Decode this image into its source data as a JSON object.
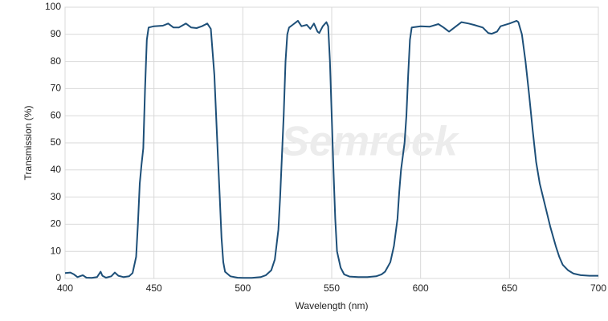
{
  "chart_data": {
    "type": "line",
    "watermark": "Semrock",
    "xlabel": "Wavelength (nm)",
    "ylabel": "Transmission (%)",
    "xlim": [
      400,
      700
    ],
    "ylim": [
      0,
      100
    ],
    "xticks": [
      400,
      450,
      500,
      550,
      600,
      650,
      700
    ],
    "yticks": [
      0,
      10,
      20,
      30,
      40,
      50,
      60,
      70,
      80,
      90,
      100
    ],
    "grid": true,
    "series": [
      {
        "color": "#1d4f78",
        "x": [
          400,
          403,
          405,
          407,
          410,
          412,
          415,
          418,
          420,
          421,
          423,
          426,
          428,
          430,
          433,
          436,
          438,
          440,
          441,
          442,
          443,
          444,
          445,
          446,
          447,
          450,
          455,
          458,
          461,
          464,
          468,
          471,
          474,
          477,
          480,
          482,
          484,
          486,
          487,
          488,
          489,
          490,
          493,
          497,
          500,
          505,
          510,
          513,
          516,
          518,
          520,
          521,
          522,
          523,
          524,
          525,
          526,
          528,
          531,
          533,
          536,
          538,
          540,
          542,
          543,
          545,
          547,
          548,
          549,
          550,
          551,
          552,
          553,
          555,
          557,
          560,
          565,
          570,
          575,
          578,
          580,
          583,
          585,
          587,
          588,
          589,
          590,
          591,
          592,
          593,
          594,
          595,
          600,
          605,
          610,
          613,
          616,
          620,
          623,
          627,
          630,
          635,
          638,
          640,
          643,
          645,
          650,
          654,
          655,
          657,
          659,
          661,
          663,
          665,
          667,
          670,
          673,
          676,
          678,
          680,
          683,
          686,
          690,
          695,
          700
        ],
        "values": [
          2,
          2.2,
          1.5,
          0.5,
          1.2,
          0.3,
          0.2,
          0.5,
          2.5,
          1,
          0.3,
          0.8,
          2.2,
          1,
          0.5,
          0.8,
          2,
          8,
          20,
          35,
          42,
          48,
          70,
          88,
          92.5,
          93,
          93.2,
          94,
          92.5,
          92.5,
          94,
          92.5,
          92.3,
          93,
          94,
          92,
          75,
          45,
          30,
          15,
          6,
          2.5,
          0.8,
          0.3,
          0.2,
          0.2,
          0.5,
          1.2,
          3,
          7,
          18,
          30,
          45,
          60,
          80,
          90,
          92.5,
          93.5,
          95,
          93,
          93.5,
          92,
          94,
          91,
          90.5,
          93,
          94.5,
          93,
          80,
          60,
          40,
          22,
          10,
          4,
          1.5,
          0.7,
          0.5,
          0.5,
          0.8,
          1.5,
          2.5,
          6,
          12,
          22,
          32,
          40,
          45,
          50,
          60,
          75,
          88,
          92.5,
          93,
          92.8,
          93.8,
          92.5,
          91,
          93,
          94.5,
          94,
          93.5,
          92.5,
          90.5,
          90.2,
          91,
          93,
          94,
          95,
          94.5,
          90,
          80,
          68,
          55,
          43,
          35,
          27,
          19,
          12,
          8,
          5,
          3,
          1.8,
          1.2,
          1,
          1
        ]
      }
    ]
  }
}
